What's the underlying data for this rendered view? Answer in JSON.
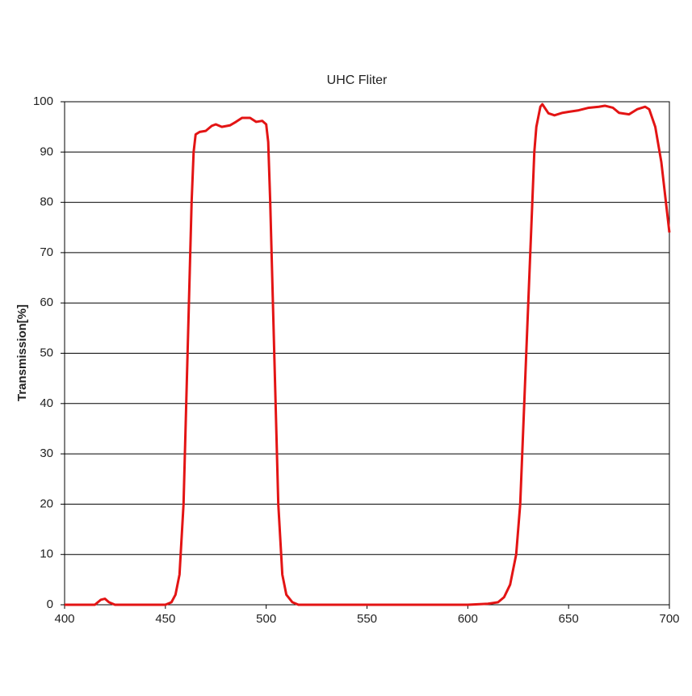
{
  "chart_data": {
    "type": "line",
    "title": "UHC Fliter",
    "y_label": "Transmission[%]",
    "x": [
      400,
      410,
      415,
      418,
      420,
      422,
      425,
      440,
      450,
      453,
      455,
      457,
      459,
      461,
      463,
      464,
      465,
      467,
      470,
      473,
      475,
      478,
      482,
      485,
      488,
      492,
      495,
      498,
      500,
      501,
      502,
      504,
      506,
      508,
      510,
      513,
      516,
      520,
      550,
      580,
      600,
      610,
      615,
      618,
      621,
      624,
      626,
      628,
      630,
      632,
      633,
      634,
      636,
      637,
      640,
      643,
      647,
      650,
      655,
      660,
      665,
      668,
      672,
      675,
      680,
      684,
      688,
      690,
      693,
      696,
      700
    ],
    "values": [
      0,
      0,
      0,
      1,
      1.2,
      0.5,
      0,
      0,
      0,
      0.5,
      2,
      6,
      20,
      50,
      80,
      90,
      93.5,
      94,
      94.2,
      95.2,
      95.5,
      95,
      95.3,
      96,
      96.8,
      96.8,
      96,
      96.2,
      95.5,
      92,
      80,
      50,
      20,
      6,
      2,
      0.5,
      0,
      0,
      0,
      0,
      0,
      0.2,
      0.5,
      1.5,
      4,
      10,
      20,
      40,
      60,
      80,
      90,
      95,
      99,
      99.5,
      97.7,
      97.3,
      97.8,
      98,
      98.3,
      98.8,
      99,
      99.2,
      98.8,
      97.8,
      97.5,
      98.5,
      99,
      98.5,
      95,
      88,
      74
    ],
    "color": "#e31414",
    "xlim": [
      400,
      700
    ],
    "xticks": [
      400,
      450,
      500,
      550,
      600,
      650,
      700
    ],
    "ylim": [
      0,
      100
    ],
    "yticks": [
      0,
      10,
      20,
      30,
      40,
      50,
      60,
      70,
      80,
      90,
      100
    ],
    "grid": true
  }
}
